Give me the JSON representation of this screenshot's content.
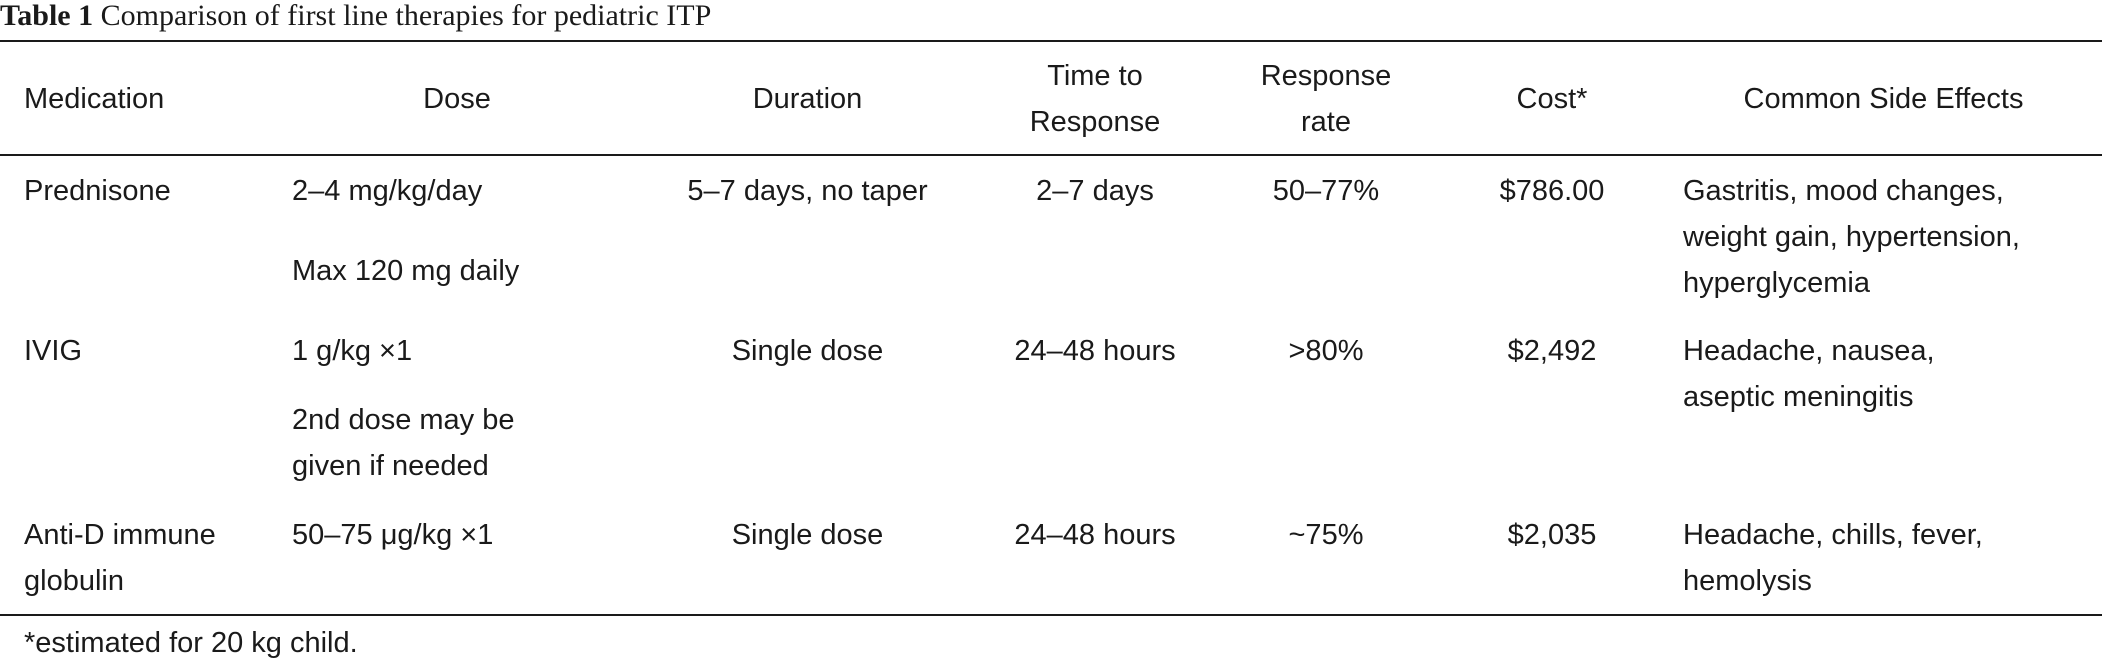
{
  "caption": {
    "label": "Table 1",
    "title": "Comparison of first line therapies for pediatric ITP"
  },
  "table": {
    "headers": {
      "medication": "Medication",
      "dose": "Dose",
      "duration": "Duration",
      "time_to_response_l1": "Time to",
      "time_to_response_l2": "Response",
      "response_rate_l1": "Response",
      "response_rate_l2": "rate",
      "cost": "Cost*",
      "side_effects": "Common Side Effects"
    },
    "rows": [
      {
        "medication": "Prednisone",
        "dose": "2–4 mg/kg/day",
        "dose_note": "Max 120 mg daily",
        "duration": "5–7 days, no taper",
        "time_to_response": "2–7 days",
        "response_rate": "50–77%",
        "cost": "$786.00",
        "side_effects_l1": "Gastritis, mood changes,",
        "side_effects_l2": "weight gain, hypertension,",
        "side_effects_l3": "hyperglycemia"
      },
      {
        "medication": "IVIG",
        "dose": "1 g/kg ×1",
        "dose_note_l1": "2nd dose may be",
        "dose_note_l2": "given if needed",
        "duration": "Single dose",
        "time_to_response": "24–48 hours",
        "response_rate": ">80%",
        "cost": "$2,492",
        "side_effects_l1": "Headache, nausea,",
        "side_effects_l2": "aseptic meningitis"
      },
      {
        "medication_l1": "Anti-D immune",
        "medication_l2": "globulin",
        "dose": "50–75 μg/kg ×1",
        "duration": "Single dose",
        "time_to_response": "24–48 hours",
        "response_rate": "~75%",
        "cost": "$2,035",
        "side_effects_l1": "Headache, chills, fever,",
        "side_effects_l2": "hemolysis"
      }
    ]
  },
  "footnote": "*estimated for 20 kg child."
}
